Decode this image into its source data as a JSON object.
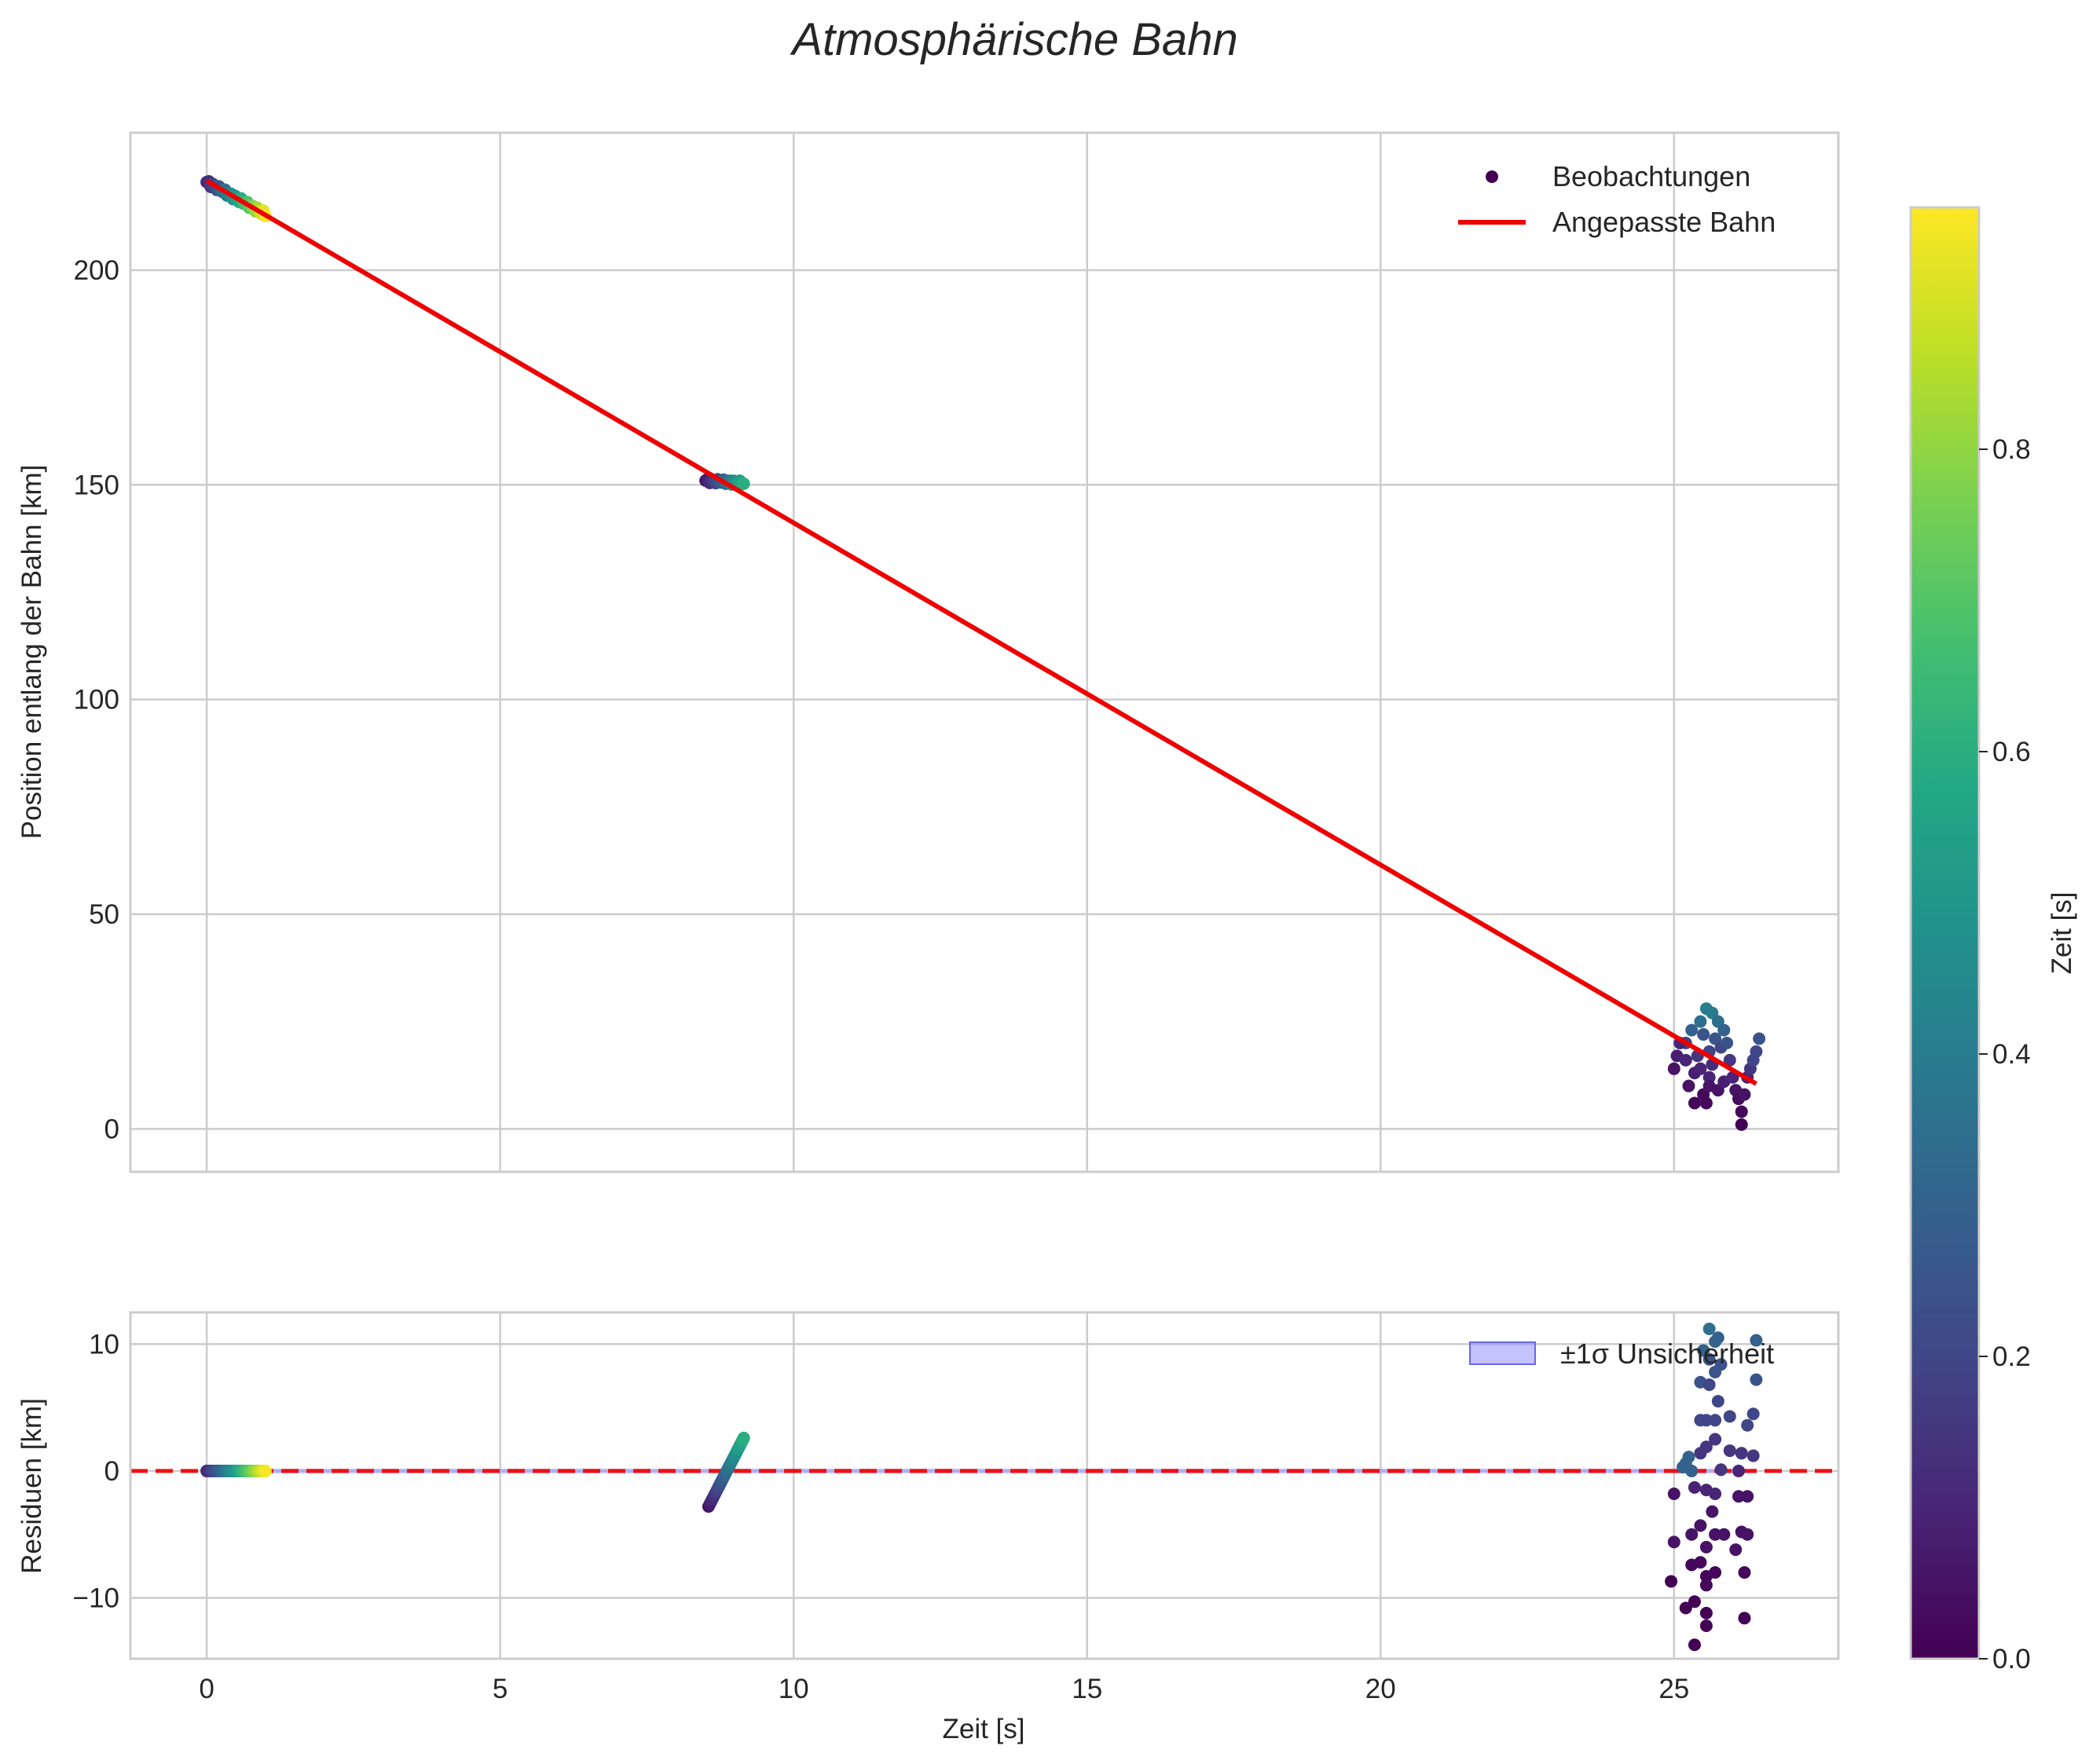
{
  "title": "Atmosphärische Bahn",
  "colors": {
    "fit_line": "#ee0000",
    "zero_line": "#ee1111",
    "band_fill": "#8888ff",
    "grid": "#cccccc",
    "frame": "#cccccc",
    "text": "#262626"
  },
  "chart_data": [
    {
      "id": "top",
      "type": "scatter",
      "ylabel": "Position entlang der Bahn [km]",
      "xlabel": "",
      "xlim": [
        -1.3,
        27.8
      ],
      "ylim": [
        -10,
        232
      ],
      "xticks": [
        0,
        5,
        10,
        15,
        20,
        25
      ],
      "yticks": [
        0,
        50,
        100,
        150,
        200
      ],
      "ytick_labels": [
        "0",
        "50",
        "100",
        "150",
        "200"
      ],
      "legend": {
        "position": "top-right",
        "scatter_label": "Beobachtungen",
        "line_label": "Angepasste Bahn"
      },
      "fit_line": {
        "x": [
          0.0,
          26.4
        ],
        "y": [
          220.8,
          10.5
        ]
      },
      "clusters": [
        {
          "name": "passage-1",
          "x_start": 0.0,
          "x_end": 1.0,
          "y_start": 220.5,
          "y_end": 213.0,
          "n": 30,
          "y_spread": 0.6,
          "cmin": 0.1,
          "cmax": 0.95
        },
        {
          "name": "passage-2",
          "x_start": 8.5,
          "x_end": 9.15,
          "y_start": 151.0,
          "y_end": 150.4,
          "n": 20,
          "y_spread": 0.5,
          "cmin": 0.05,
          "cmax": 0.6
        }
      ],
      "points_late": [
        [
          25.2,
          20,
          0.2
        ],
        [
          25.3,
          23,
          0.3
        ],
        [
          25.45,
          25,
          0.35
        ],
        [
          25.55,
          28,
          0.4
        ],
        [
          25.65,
          27,
          0.4
        ],
        [
          25.75,
          25,
          0.35
        ],
        [
          25.4,
          17,
          0.15
        ],
        [
          25.5,
          22,
          0.25
        ],
        [
          25.6,
          18,
          0.2
        ],
        [
          25.7,
          21,
          0.25
        ],
        [
          25.8,
          19,
          0.2
        ],
        [
          25.9,
          20,
          0.25
        ],
        [
          25.0,
          14,
          0.05
        ],
        [
          25.05,
          17,
          0.08
        ],
        [
          25.1,
          20,
          0.1
        ],
        [
          25.25,
          10,
          0.05
        ],
        [
          25.35,
          13,
          0.08
        ],
        [
          25.35,
          6,
          0.02
        ],
        [
          25.5,
          8,
          0.02
        ],
        [
          25.55,
          6,
          0.02
        ],
        [
          25.6,
          12,
          0.1
        ],
        [
          25.65,
          15,
          0.12
        ],
        [
          25.75,
          9,
          0.05
        ],
        [
          25.85,
          11,
          0.08
        ],
        [
          25.95,
          16,
          0.15
        ],
        [
          26.0,
          12,
          0.1
        ],
        [
          26.05,
          9,
          0.05
        ],
        [
          26.1,
          7,
          0.03
        ],
        [
          26.15,
          4,
          0.02
        ],
        [
          26.15,
          1,
          0.0
        ],
        [
          26.25,
          12,
          0.1
        ],
        [
          26.3,
          14,
          0.15
        ],
        [
          26.35,
          16,
          0.2
        ],
        [
          26.4,
          18,
          0.2
        ],
        [
          26.45,
          21,
          0.25
        ],
        [
          25.45,
          14,
          0.1
        ],
        [
          25.2,
          16,
          0.1
        ],
        [
          25.85,
          23,
          0.3
        ],
        [
          25.6,
          10,
          0.05
        ],
        [
          26.2,
          8,
          0.05
        ]
      ]
    },
    {
      "id": "bottom",
      "type": "scatter",
      "ylabel": "Residuen [km]",
      "xlabel": "Zeit [s]",
      "xlim": [
        -1.3,
        27.8
      ],
      "ylim": [
        -14.8,
        12.5
      ],
      "xticks": [
        0,
        5,
        10,
        15,
        20,
        25
      ],
      "yticks": [
        -10,
        0,
        10
      ],
      "ytick_labels": [
        "−10",
        "0",
        "10"
      ],
      "xtick_labels": [
        "0",
        "5",
        "10",
        "15",
        "20",
        "25"
      ],
      "legend": {
        "position": "top-right",
        "band_label": "±1σ Unsicherheit"
      },
      "zero_line": 0,
      "clusters": [
        {
          "name": "residual-1",
          "x_start": 0.0,
          "x_end": 1.0,
          "y_start": 0.0,
          "y_end": 0.0,
          "n": 30,
          "y_spread": 0.0,
          "cmin": 0.1,
          "cmax": 0.95
        },
        {
          "name": "residual-2",
          "x_start": 8.55,
          "x_end": 9.15,
          "y_start": -2.8,
          "y_end": 2.6,
          "n": 30,
          "y_spread": 0.0,
          "cmin": 0.05,
          "cmax": 0.6
        }
      ],
      "points_late": [
        [
          25.6,
          11.2,
          0.35
        ],
        [
          25.7,
          10.2,
          0.3
        ],
        [
          25.75,
          10.5,
          0.3
        ],
        [
          26.4,
          10.3,
          0.3
        ],
        [
          25.5,
          9.5,
          0.3
        ],
        [
          25.6,
          8.8,
          0.25
        ],
        [
          25.8,
          8.4,
          0.25
        ],
        [
          25.7,
          7.8,
          0.25
        ],
        [
          25.45,
          7.0,
          0.25
        ],
        [
          25.6,
          6.8,
          0.2
        ],
        [
          26.4,
          7.2,
          0.25
        ],
        [
          25.75,
          5.5,
          0.2
        ],
        [
          25.45,
          4.0,
          0.2
        ],
        [
          25.55,
          4.0,
          0.2
        ],
        [
          25.7,
          4.0,
          0.2
        ],
        [
          25.95,
          4.3,
          0.2
        ],
        [
          26.35,
          4.5,
          0.2
        ],
        [
          26.25,
          3.6,
          0.2
        ],
        [
          25.7,
          2.5,
          0.15
        ],
        [
          25.55,
          1.9,
          0.15
        ],
        [
          25.45,
          1.4,
          0.15
        ],
        [
          25.95,
          1.6,
          0.15
        ],
        [
          26.15,
          1.4,
          0.15
        ],
        [
          26.35,
          1.2,
          0.15
        ],
        [
          25.25,
          1.1,
          0.3
        ],
        [
          25.2,
          0.6,
          0.3
        ],
        [
          25.15,
          0.3,
          0.3
        ],
        [
          25.3,
          0.0,
          0.3
        ],
        [
          25.8,
          0.1,
          0.15
        ],
        [
          26.1,
          0.0,
          0.1
        ],
        [
          25.0,
          -1.8,
          0.05
        ],
        [
          25.35,
          -1.3,
          0.1
        ],
        [
          25.55,
          -1.5,
          0.1
        ],
        [
          25.7,
          -1.8,
          0.1
        ],
        [
          26.1,
          -2.0,
          0.05
        ],
        [
          26.25,
          -2.0,
          0.05
        ],
        [
          25.65,
          -3.2,
          0.05
        ],
        [
          25.45,
          -4.3,
          0.05
        ],
        [
          25.3,
          -5.0,
          0.05
        ],
        [
          25.7,
          -5.0,
          0.05
        ],
        [
          25.85,
          -5.0,
          0.05
        ],
        [
          26.15,
          -4.8,
          0.05
        ],
        [
          26.25,
          -5.0,
          0.05
        ],
        [
          25.0,
          -5.6,
          0.05
        ],
        [
          25.55,
          -6.0,
          0.05
        ],
        [
          26.05,
          -6.2,
          0.05
        ],
        [
          25.3,
          -7.4,
          0.02
        ],
        [
          25.45,
          -7.2,
          0.02
        ],
        [
          25.7,
          -8.0,
          0.02
        ],
        [
          26.2,
          -8.0,
          0.02
        ],
        [
          25.55,
          -8.3,
          0.02
        ],
        [
          24.95,
          -8.7,
          0.0
        ],
        [
          25.55,
          -9.0,
          0.02
        ],
        [
          25.35,
          -10.3,
          0.0
        ],
        [
          25.2,
          -10.8,
          0.0
        ],
        [
          25.55,
          -11.2,
          0.0
        ],
        [
          26.2,
          -11.6,
          0.0
        ],
        [
          25.55,
          -12.2,
          0.0
        ],
        [
          25.35,
          -13.7,
          0.0
        ]
      ]
    }
  ],
  "colorbar": {
    "label": "Zeit [s]",
    "range": [
      0.0,
      0.96
    ],
    "ticks": [
      0.0,
      0.2,
      0.4,
      0.6,
      0.8
    ],
    "tick_labels": [
      "0.0",
      "0.2",
      "0.4",
      "0.6",
      "0.8"
    ]
  }
}
